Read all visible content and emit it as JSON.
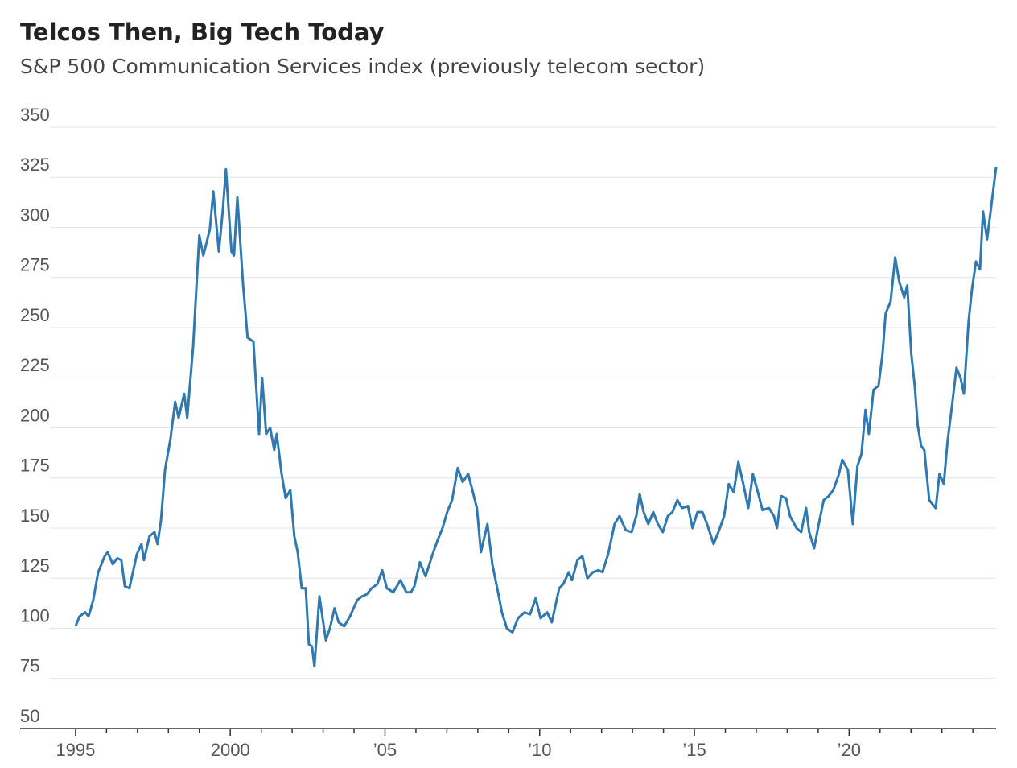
{
  "chart_data": {
    "type": "line",
    "title": "Telcos Then, Big Tech Today",
    "subtitle": "S&P 500 Communication Services index (previously telecom sector)",
    "x": [
      1995.0,
      1995.13,
      1995.31,
      1995.42,
      1995.57,
      1995.73,
      1995.94,
      1996.04,
      1996.2,
      1996.35,
      1996.48,
      1996.59,
      1996.74,
      1996.98,
      1997.13,
      1997.21,
      1997.39,
      1997.55,
      1997.65,
      1997.76,
      1997.89,
      1998.07,
      1998.22,
      1998.33,
      1998.51,
      1998.61,
      1998.8,
      1999.0,
      1999.13,
      1999.34,
      1999.45,
      1999.63,
      1999.76,
      1999.86,
      2000.04,
      2000.12,
      2000.23,
      2000.41,
      2000.56,
      2000.75,
      2000.82,
      2000.93,
      2001.03,
      2001.16,
      2001.29,
      2001.42,
      2001.5,
      2001.66,
      2001.79,
      2001.94,
      2002.07,
      2002.18,
      2002.31,
      2002.44,
      2002.54,
      2002.64,
      2002.72,
      2002.88,
      2003.09,
      2003.22,
      2003.37,
      2003.5,
      2003.68,
      2003.87,
      2004.1,
      2004.26,
      2004.41,
      2004.57,
      2004.75,
      2004.91,
      2005.06,
      2005.27,
      2005.5,
      2005.69,
      2005.84,
      2005.95,
      2006.13,
      2006.31,
      2006.54,
      2006.7,
      2006.86,
      2007.01,
      2007.17,
      2007.35,
      2007.51,
      2007.69,
      2007.84,
      2007.97,
      2008.1,
      2008.31,
      2008.47,
      2008.68,
      2008.78,
      2008.94,
      2009.12,
      2009.3,
      2009.51,
      2009.69,
      2009.87,
      2010.03,
      2010.24,
      2010.39,
      2010.63,
      2010.76,
      2010.94,
      2011.04,
      2011.22,
      2011.38,
      2011.54,
      2011.72,
      2011.9,
      2012.03,
      2012.21,
      2012.42,
      2012.58,
      2012.78,
      2012.97,
      2013.12,
      2013.23,
      2013.36,
      2013.51,
      2013.67,
      2013.82,
      2013.98,
      2014.14,
      2014.29,
      2014.45,
      2014.6,
      2014.79,
      2014.94,
      2015.1,
      2015.26,
      2015.41,
      2015.62,
      2015.8,
      2015.96,
      2016.11,
      2016.27,
      2016.42,
      2016.58,
      2016.74,
      2016.89,
      2017.05,
      2017.2,
      2017.41,
      2017.57,
      2017.67,
      2017.8,
      2017.96,
      2018.09,
      2018.3,
      2018.45,
      2018.61,
      2018.71,
      2018.87,
      2019.02,
      2019.18,
      2019.34,
      2019.49,
      2019.65,
      2019.78,
      2019.96,
      2020.12,
      2020.27,
      2020.4,
      2020.53,
      2020.64,
      2020.79,
      2020.95,
      2021.08,
      2021.18,
      2021.34,
      2021.49,
      2021.62,
      2021.78,
      2021.88,
      2022.01,
      2022.12,
      2022.22,
      2022.33,
      2022.43,
      2022.59,
      2022.69,
      2022.8,
      2022.92,
      2023.06,
      2023.18,
      2023.34,
      2023.47,
      2023.6,
      2023.71,
      2023.86,
      2023.97,
      2024.1,
      2024.23,
      2024.33,
      2024.46,
      2024.59,
      2024.75
    ],
    "series": [
      {
        "color": "#2f78b0",
        "values": [
          101,
          106,
          108,
          106,
          114,
          128,
          136,
          138,
          132,
          135,
          134,
          121,
          120,
          137,
          142,
          134,
          146,
          148,
          142,
          154,
          179,
          195,
          213,
          205,
          217,
          205,
          241,
          296,
          286,
          299,
          318,
          288,
          309,
          329,
          288,
          286,
          315,
          272,
          245,
          243,
          225,
          197,
          225,
          197,
          200,
          189,
          197,
          177,
          165,
          169,
          146,
          138,
          120,
          120,
          92,
          91,
          81,
          116,
          94,
          100,
          110,
          103,
          101,
          106,
          114,
          116,
          117,
          120,
          122,
          129,
          120,
          118,
          124,
          118,
          118,
          121,
          133,
          126,
          137,
          144,
          150,
          158,
          164,
          180,
          173,
          177,
          168,
          160,
          138,
          152,
          132,
          116,
          108,
          100,
          98,
          105,
          108,
          107,
          115,
          105,
          108,
          103,
          120,
          122,
          128,
          124,
          134,
          136,
          125,
          128,
          129,
          128,
          137,
          152,
          156,
          149,
          148,
          156,
          167,
          158,
          152,
          158,
          152,
          148,
          156,
          158,
          164,
          160,
          161,
          150,
          158,
          158,
          152,
          142,
          149,
          156,
          172,
          168,
          183,
          172,
          160,
          177,
          168,
          159,
          160,
          156,
          150,
          166,
          165,
          156,
          150,
          148,
          160,
          148,
          140,
          152,
          164,
          166,
          169,
          176,
          184,
          179,
          152,
          181,
          187,
          209,
          197,
          219,
          221,
          237,
          257,
          263,
          285,
          273,
          265,
          271,
          237,
          221,
          201,
          191,
          189,
          164,
          162,
          160,
          177,
          172,
          193,
          213,
          230,
          225,
          217,
          253,
          269,
          283,
          279,
          308,
          294,
          310,
          330
        ]
      }
    ],
    "xlim": [
      1994.17,
      2024.75
    ],
    "xticks": [
      {
        "value": 1995,
        "label": "1995"
      },
      2000,
      {
        "value": 2005,
        "label": "’05"
      },
      {
        "value": 2010,
        "label": "’10"
      },
      {
        "value": 2015,
        "label": "’15"
      },
      {
        "value": 2020,
        "label": "’20"
      }
    ],
    "xminorticks": [
      1996,
      1997,
      1998,
      1999,
      2001,
      2002,
      2003,
      2004,
      2006,
      2007,
      2008,
      2009,
      2011,
      2012,
      2013,
      2014,
      2016,
      2017,
      2018,
      2019,
      2021,
      2022,
      2023,
      2024
    ],
    "ylim": [
      50,
      350
    ],
    "yticks": [
      50,
      75,
      100,
      125,
      150,
      175,
      200,
      225,
      250,
      275,
      300,
      325,
      350
    ],
    "grid": true
  }
}
